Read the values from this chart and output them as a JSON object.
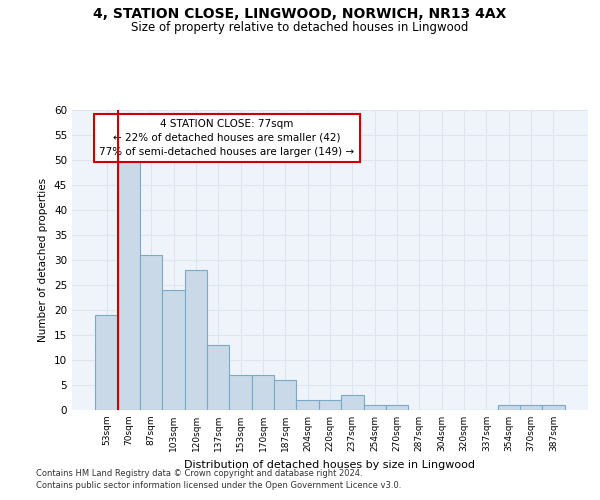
{
  "title": "4, STATION CLOSE, LINGWOOD, NORWICH, NR13 4AX",
  "subtitle": "Size of property relative to detached houses in Lingwood",
  "xlabel": "Distribution of detached houses by size in Lingwood",
  "ylabel": "Number of detached properties",
  "bar_labels": [
    "53sqm",
    "70sqm",
    "87sqm",
    "103sqm",
    "120sqm",
    "137sqm",
    "153sqm",
    "170sqm",
    "187sqm",
    "204sqm",
    "220sqm",
    "237sqm",
    "254sqm",
    "270sqm",
    "287sqm",
    "304sqm",
    "320sqm",
    "337sqm",
    "354sqm",
    "370sqm",
    "387sqm"
  ],
  "bar_values": [
    19,
    50,
    31,
    24,
    28,
    13,
    7,
    7,
    6,
    2,
    2,
    3,
    1,
    1,
    0,
    0,
    0,
    0,
    1,
    1,
    1
  ],
  "bar_color": "#c9d9e8",
  "bar_edge_color": "#7aaac8",
  "grid_color": "#dce6f0",
  "background_color": "#eef4fa",
  "ylim": [
    0,
    60
  ],
  "yticks": [
    0,
    5,
    10,
    15,
    20,
    25,
    30,
    35,
    40,
    45,
    50,
    55,
    60
  ],
  "property_line_x": 0.5,
  "property_line_color": "#cc0000",
  "annotation_text": "4 STATION CLOSE: 77sqm\n← 22% of detached houses are smaller (42)\n77% of semi-detached houses are larger (149) →",
  "annotation_box_color": "#ffffff",
  "annotation_box_edge_color": "#cc0000",
  "footer_line1": "Contains HM Land Registry data © Crown copyright and database right 2024.",
  "footer_line2": "Contains public sector information licensed under the Open Government Licence v3.0."
}
